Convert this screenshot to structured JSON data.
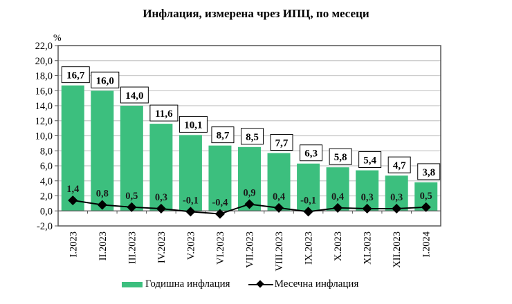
{
  "title": "Инфлация, измерена чрез ИПЦ, по месеци",
  "colors": {
    "bar": "#3cbf7e",
    "line": "#000000",
    "grid": "#c8c8c8",
    "axis": "#555555"
  },
  "legend": {
    "annual_label": "Годишна инфлация",
    "monthly_label": "Месечна инфлация"
  },
  "chart_data": {
    "type": "bar",
    "title": "Инфлация, измерена чрез ИПЦ, по месеци",
    "xlabel": "",
    "ylabel": "%",
    "ylim": [
      -2.0,
      22.0
    ],
    "yticks": [
      "-2,0",
      "0,0",
      "2,0",
      "4,0",
      "6,0",
      "8,0",
      "10,0",
      "12,0",
      "14,0",
      "16,0",
      "18,0",
      "20,0",
      "22,0"
    ],
    "grid": true,
    "legend_position": "bottom",
    "categories": [
      "I.2023",
      "II.2023",
      "III.2023",
      "IV.2023",
      "V.2023",
      "VI.2023",
      "VII.2023",
      "VIII.2023",
      "IX.2023",
      "X.2023",
      "XI.2023",
      "XII.2023",
      "I.2024"
    ],
    "series": [
      {
        "name": "Годишна инфлация",
        "type": "bar",
        "values": [
          16.7,
          16.0,
          14.0,
          11.6,
          10.1,
          8.7,
          8.5,
          7.7,
          6.3,
          5.8,
          5.4,
          4.7,
          3.8
        ],
        "labels": [
          "16,7",
          "16,0",
          "14,0",
          "11,6",
          "10,1",
          "8,7",
          "8,5",
          "7,7",
          "6,3",
          "5,8",
          "5,4",
          "4,7",
          "3,8"
        ]
      },
      {
        "name": "Месечна инфлация",
        "type": "line",
        "marker": "diamond",
        "values": [
          1.4,
          0.8,
          0.5,
          0.3,
          -0.1,
          -0.4,
          0.9,
          0.4,
          -0.1,
          0.4,
          0.3,
          0.3,
          0.5
        ],
        "labels": [
          "1,4",
          "0,8",
          "0,5",
          "0,3",
          "-0,1",
          "-0,4",
          "0,9",
          "0,4",
          "-0,1",
          "0,4",
          "0,3",
          "0,3",
          "0,5"
        ]
      }
    ]
  }
}
